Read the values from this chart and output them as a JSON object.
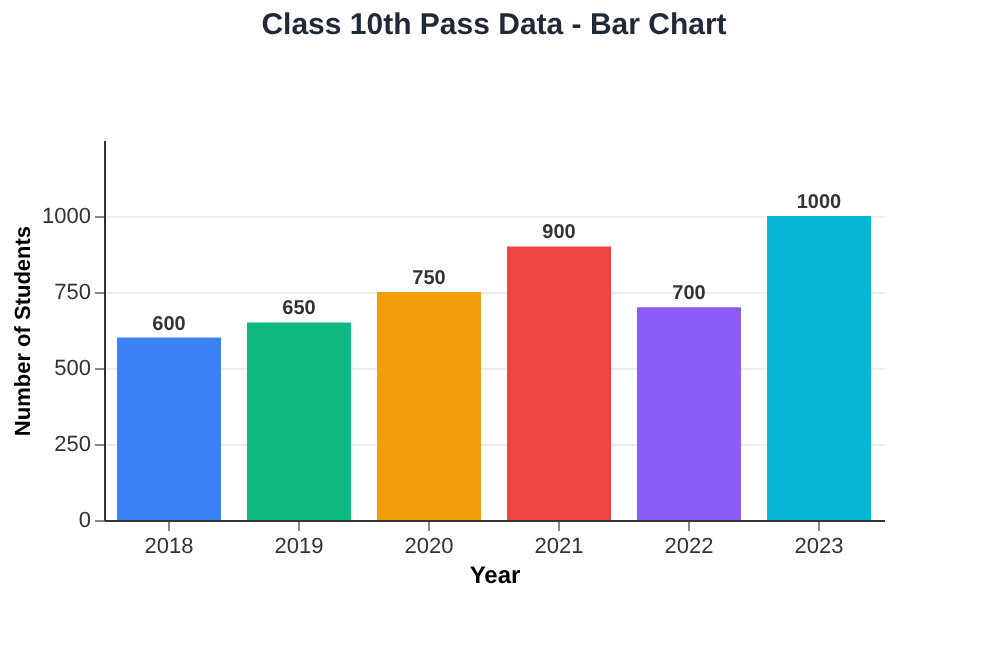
{
  "chart_data": {
    "type": "bar",
    "title": "Class 10th Pass Data - Bar Chart",
    "xlabel": "Year",
    "ylabel": "Number of Students",
    "categories": [
      "2018",
      "2019",
      "2020",
      "2021",
      "2022",
      "2023"
    ],
    "values": [
      600,
      650,
      750,
      900,
      700,
      1000
    ],
    "colors": [
      "#3b82f6",
      "#10b981",
      "#f59e0b",
      "#ef4444",
      "#8b5cf6",
      "#06b6d4"
    ],
    "ylim": [
      0,
      1250
    ],
    "yticks": [
      0,
      250,
      500,
      750,
      1000
    ],
    "grid": "y",
    "data_labels": true
  }
}
